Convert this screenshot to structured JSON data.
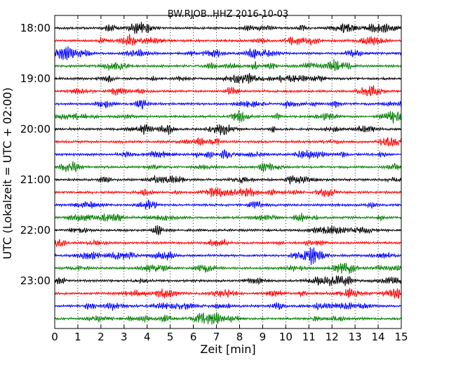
{
  "chart_data": {
    "type": "line",
    "title": "BW.RJOB..HHZ 2016-10-03",
    "xlabel": "Zeit  [min]",
    "ylabel": "UTC (Lokalzeit = UTC + 02:00)",
    "xlim": [
      0,
      15
    ],
    "x_ticks": [
      "0",
      "1",
      "2",
      "3",
      "4",
      "5",
      "6",
      "7",
      "8",
      "9",
      "10",
      "11",
      "12",
      "13",
      "14",
      "15"
    ],
    "y_tick_labels": [
      "18:00",
      "19:00",
      "20:00",
      "21:00",
      "22:00",
      "23:00"
    ],
    "grid": "vertical dotted",
    "traces_per_hour": 4,
    "trace_count": 24,
    "trace_colors": [
      "#000000",
      "#ff0000",
      "#0000ff",
      "#007f00"
    ]
  }
}
